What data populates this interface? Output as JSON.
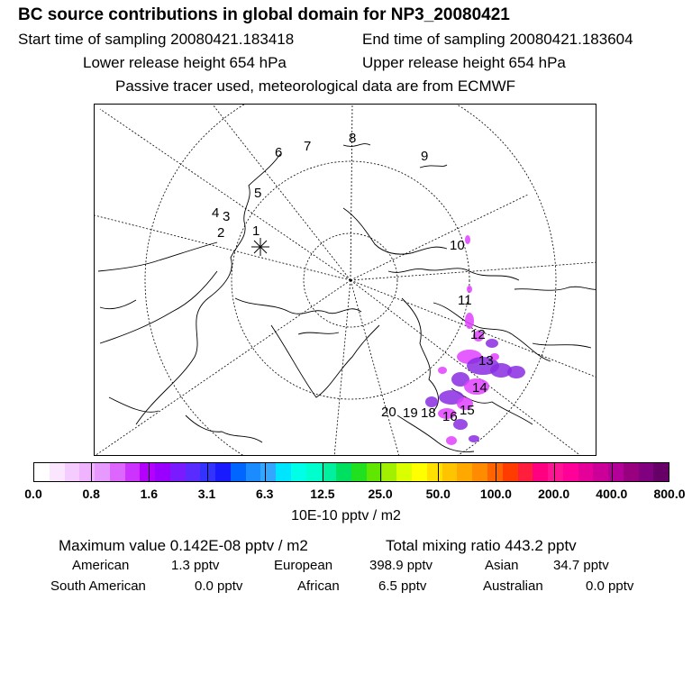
{
  "header": {
    "title": "BC  source contributions in global domain for NP3_20080421",
    "start_time": "Start time of sampling 20080421.183418",
    "end_time": "End time of sampling 20080421.183604",
    "lower_height": "Lower release height  654 hPa",
    "upper_height": "Upper release height  654 hPa",
    "note": "Passive tracer used, meteorological data are from ECMWF"
  },
  "map": {
    "track_labels": [
      "1",
      "2",
      "3",
      "4",
      "5",
      "6",
      "7",
      "8",
      "9",
      "10",
      "11",
      "12",
      "13",
      "14",
      "15",
      "16",
      "18",
      "19",
      "20"
    ],
    "release_marker": "asterisk",
    "plume_color_light": "#e040ff",
    "plume_color_dark": "#8a2be2"
  },
  "colorbar": {
    "colors": [
      "#ffffff",
      "#fbe6ff",
      "#f5ccff",
      "#efb3ff",
      "#e699ff",
      "#dd66ff",
      "#cc33ff",
      "#b300ff",
      "#9900ff",
      "#7a1aff",
      "#5a2bff",
      "#3333ff",
      "#1a1aff",
      "#0066ff",
      "#1a8cff",
      "#33a6ff",
      "#00e5ff",
      "#00ffe6",
      "#00ffcc",
      "#00f0a0",
      "#00e060",
      "#20e020",
      "#60e600",
      "#a0f000",
      "#d9ff00",
      "#ffff00",
      "#ffe000",
      "#ffc400",
      "#ffa800",
      "#ff8c00",
      "#ff6400",
      "#ff3c00",
      "#ff1e3c",
      "#ff0080",
      "#ff1493",
      "#ff0099",
      "#e6009a",
      "#cc0099",
      "#b30099",
      "#990080",
      "#800080",
      "#660066"
    ],
    "tick_labels": [
      "0.0",
      "0.8",
      "1.6",
      "3.1",
      "6.3",
      "12.5",
      "25.0",
      "50.0",
      "100.0",
      "200.0",
      "400.0",
      "800.0"
    ],
    "units": "10E-10 pptv / m2"
  },
  "stats": {
    "maximum": "Maximum value  0.142E-08 pptv / m2",
    "total": "Total mixing ratio     443.2 pptv",
    "regions": [
      {
        "name": "American",
        "value": "1.3 pptv"
      },
      {
        "name": "European",
        "value": "398.9 pptv"
      },
      {
        "name": "Asian",
        "value": "34.7 pptv"
      },
      {
        "name": "South American",
        "value": "0.0 pptv"
      },
      {
        "name": "African",
        "value": "6.5 pptv"
      },
      {
        "name": "Australian",
        "value": "0.0 pptv"
      }
    ]
  }
}
